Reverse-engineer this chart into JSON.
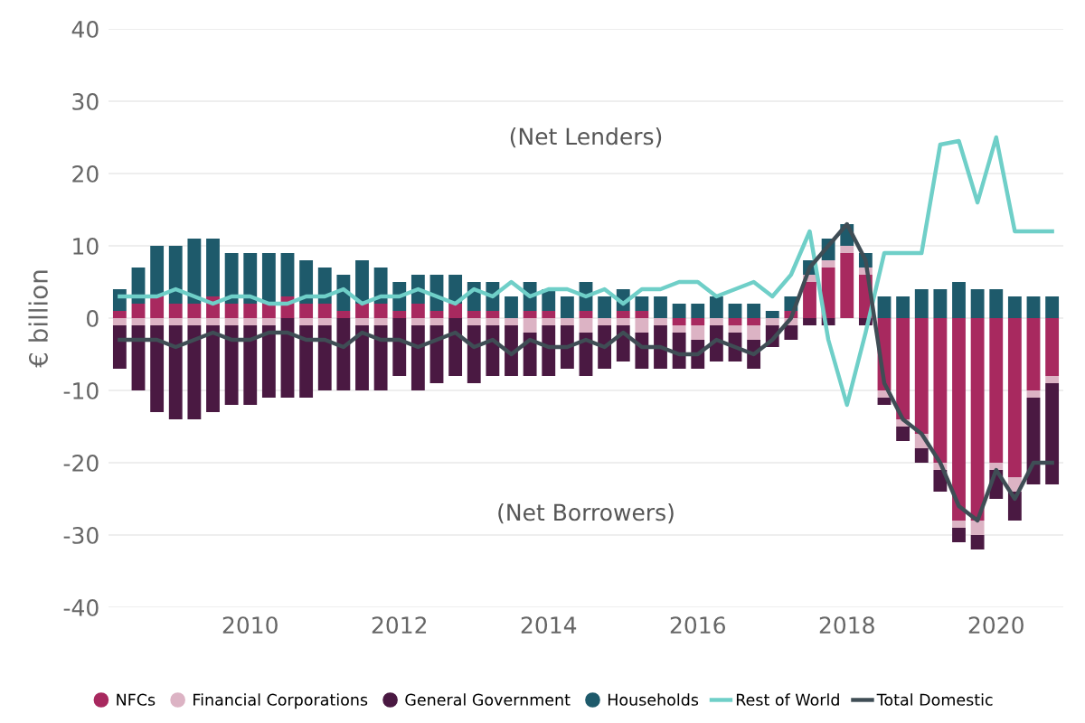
{
  "chart_data": {
    "type": "bar",
    "stacked": true,
    "ylabel": "€ billion",
    "x": [
      2008.25,
      2008.5,
      2008.75,
      2009.0,
      2009.25,
      2009.5,
      2009.75,
      2010.0,
      2010.25,
      2010.5,
      2010.75,
      2011.0,
      2011.25,
      2011.5,
      2011.75,
      2012.0,
      2012.25,
      2012.5,
      2012.75,
      2013.0,
      2013.25,
      2013.5,
      2013.75,
      2014.0,
      2014.25,
      2014.5,
      2014.75,
      2015.0,
      2015.25,
      2015.5,
      2015.75,
      2016.0,
      2016.25,
      2016.5,
      2016.75,
      2017.0,
      2017.25,
      2017.5,
      2017.75,
      2018.0,
      2018.25,
      2018.5,
      2018.75,
      2019.0,
      2019.25,
      2019.5,
      2019.75,
      2020.0,
      2020.25,
      2020.5,
      2020.75
    ],
    "series": [
      {
        "name": "NFCs",
        "color": "#a8295f",
        "values": [
          1,
          2,
          3,
          2,
          2,
          3,
          2,
          2,
          2,
          3,
          2,
          2,
          1,
          2,
          2,
          1,
          2,
          1,
          2,
          1,
          1,
          0,
          1,
          1,
          0,
          1,
          0,
          1,
          1,
          0,
          -1,
          -1,
          0,
          -1,
          -1,
          0,
          1,
          5,
          7,
          9,
          6,
          -10,
          -14,
          -16,
          -20,
          -28,
          -28,
          -20,
          -22,
          -10,
          -8
        ]
      },
      {
        "name": "Financial Corporations",
        "color": "#dcb3c4",
        "values": [
          -1,
          -1,
          -1,
          -1,
          -1,
          -1,
          -1,
          -1,
          -1,
          0,
          -1,
          -1,
          0,
          -1,
          -1,
          0,
          -1,
          -1,
          0,
          -1,
          -1,
          -1,
          -2,
          -1,
          -1,
          -2,
          -1,
          -1,
          -2,
          -1,
          -1,
          -2,
          -1,
          -1,
          -2,
          -1,
          -1,
          1,
          1,
          1,
          1,
          -1,
          -1,
          -2,
          -1,
          -1,
          -2,
          -1,
          -2,
          -1,
          -1
        ]
      },
      {
        "name": "General Government",
        "color": "#4a1942",
        "values": [
          -6,
          -9,
          -12,
          -13,
          -13,
          -12,
          -11,
          -11,
          -10,
          -11,
          -10,
          -9,
          -10,
          -9,
          -9,
          -8,
          -9,
          -8,
          -8,
          -8,
          -7,
          -7,
          -6,
          -7,
          -6,
          -6,
          -6,
          -5,
          -5,
          -6,
          -5,
          -4,
          -5,
          -4,
          -4,
          -3,
          -2,
          -1,
          -1,
          0,
          -1,
          -1,
          -2,
          -2,
          -3,
          -2,
          -2,
          -4,
          -4,
          -12,
          -14
        ]
      },
      {
        "name": "Households",
        "color": "#1e5a6b",
        "values": [
          3,
          5,
          7,
          8,
          9,
          8,
          7,
          7,
          7,
          6,
          6,
          5,
          5,
          6,
          5,
          4,
          4,
          5,
          4,
          4,
          4,
          3,
          4,
          3,
          3,
          4,
          3,
          3,
          2,
          3,
          2,
          2,
          3,
          2,
          2,
          1,
          2,
          2,
          3,
          3,
          2,
          3,
          3,
          4,
          4,
          5,
          4,
          4,
          3,
          3,
          3
        ]
      },
      {
        "name": "Rest of World",
        "type": "line",
        "color": "#6fcfc8",
        "values": [
          3,
          3,
          3,
          4,
          3,
          2,
          3,
          3,
          2,
          2,
          3,
          3,
          4,
          2,
          3,
          3,
          4,
          3,
          2,
          4,
          3,
          5,
          3,
          4,
          4,
          3,
          4,
          2,
          4,
          4,
          5,
          5,
          3,
          4,
          5,
          3,
          6,
          12,
          -3,
          -12,
          -2,
          9,
          9,
          9,
          24,
          24.5,
          16,
          25,
          12,
          12,
          12
        ]
      },
      {
        "name": "Total Domestic",
        "type": "line",
        "color": "#3f4d55",
        "values": [
          -3,
          -3,
          -3,
          -4,
          -3,
          -2,
          -3,
          -3,
          -2,
          -2,
          -3,
          -3,
          -4,
          -2,
          -3,
          -3,
          -4,
          -3,
          -2,
          -4,
          -3,
          -5,
          -3,
          -4,
          -4,
          -3,
          -4,
          -2,
          -4,
          -4,
          -5,
          -5,
          -3,
          -4,
          -5,
          -3,
          0,
          7,
          10,
          13,
          8,
          -9,
          -14,
          -16,
          -20,
          -26,
          -28,
          -21,
          -25,
          -20,
          -20
        ]
      }
    ],
    "annotations": [
      "(Net Lenders)",
      "(Net Borrowers)"
    ],
    "xlim": [
      2008.1,
      2020.9
    ],
    "xticks": [
      2010,
      2012,
      2014,
      2016,
      2018,
      2020
    ],
    "ylim": [
      -40,
      40
    ],
    "yticks": [
      -40,
      -30,
      -20,
      -10,
      0,
      10,
      20,
      30,
      40
    ],
    "grid": "y",
    "legend": "bottom"
  }
}
